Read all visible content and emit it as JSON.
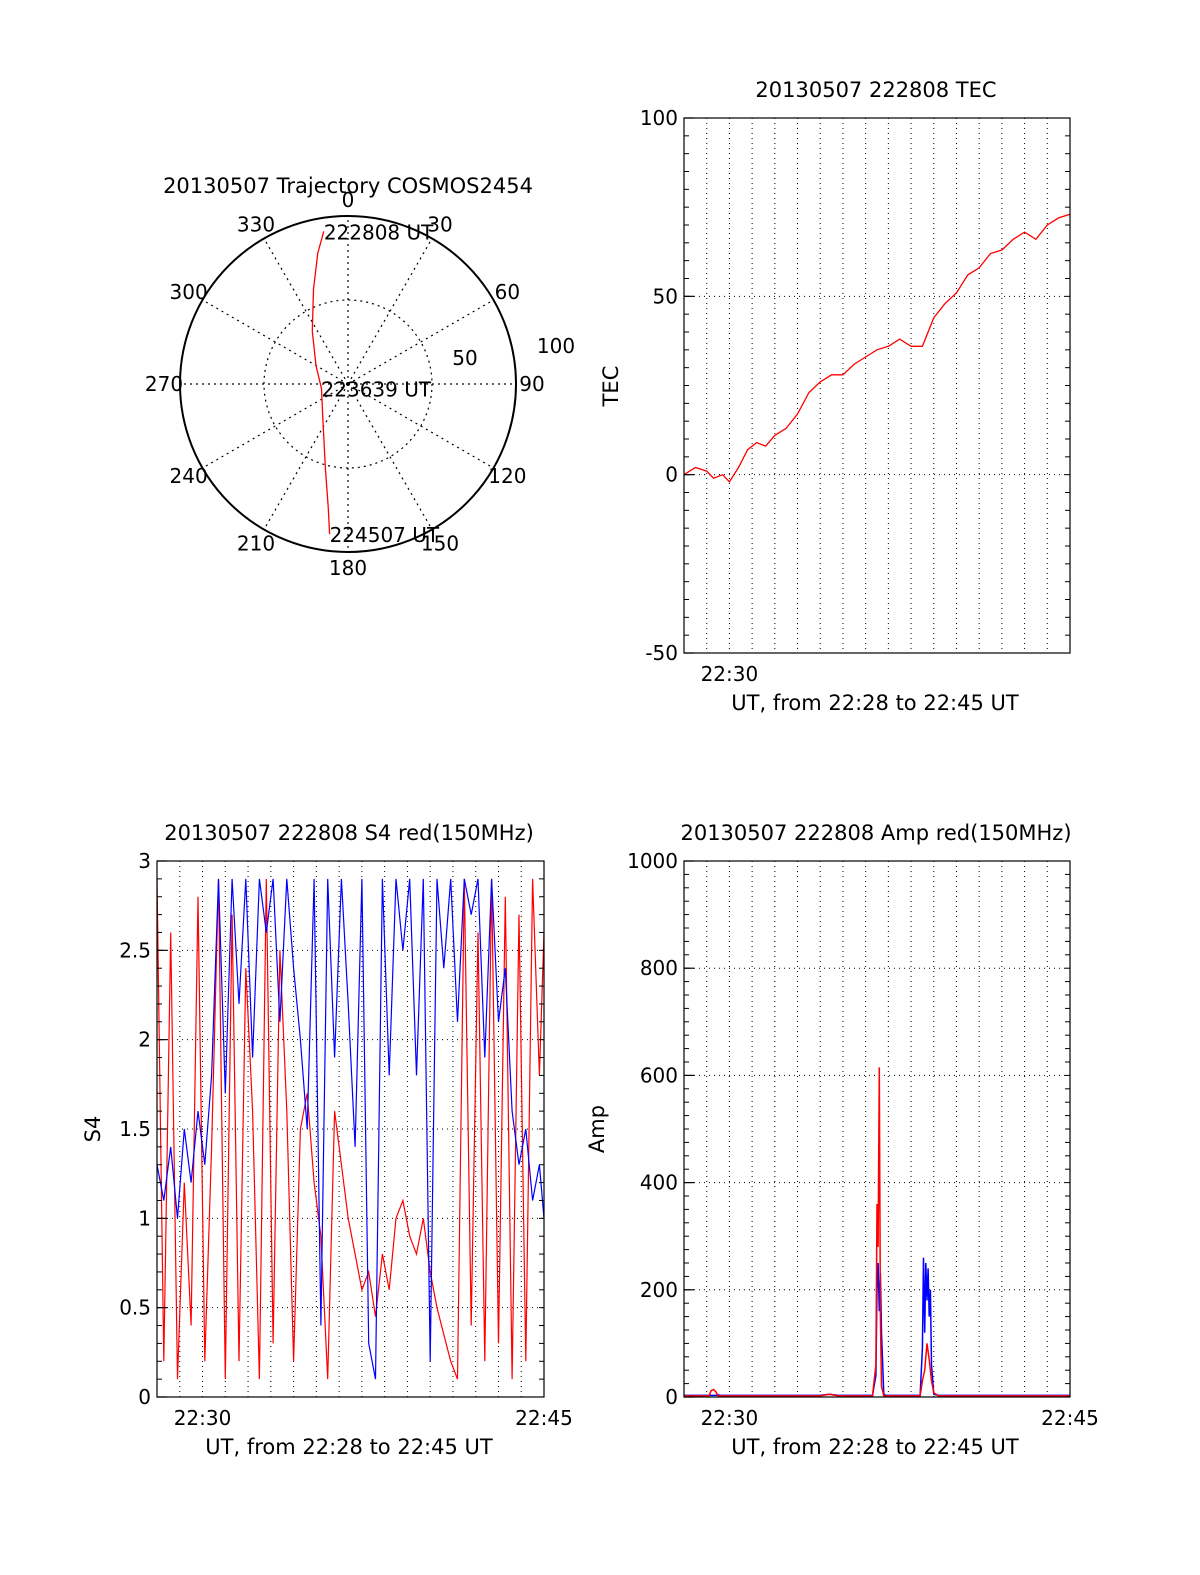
{
  "chart_data": [
    {
      "type": "polar",
      "title": "20130507 Trajectory COSMOS2454",
      "azimuth_ticks": [
        "0",
        "30",
        "60",
        "90",
        "120",
        "150",
        "180",
        "210",
        "240",
        "270",
        "300",
        "330"
      ],
      "radial_ticks": [
        "50",
        "100"
      ],
      "series": [
        {
          "color": "#ff0000",
          "points": [
            {
              "az": 351,
              "r": 92
            },
            {
              "az": 347,
              "r": 80
            },
            {
              "az": 340,
              "r": 60
            },
            {
              "az": 326,
              "r": 38
            },
            {
              "az": 300,
              "r": 22
            },
            {
              "az": 260,
              "r": 16
            },
            {
              "az": 215,
              "r": 26
            },
            {
              "az": 195,
              "r": 52
            },
            {
              "az": 189,
              "r": 75
            },
            {
              "az": 187,
              "r": 90
            }
          ]
        }
      ],
      "annotations": [
        {
          "text": "222808 UT",
          "az": 351,
          "r": 92
        },
        {
          "text": "223639 UT",
          "az": 260,
          "r": 16
        },
        {
          "text": "224507 UT",
          "az": 187,
          "r": 90
        }
      ]
    },
    {
      "type": "line",
      "title": "20130507 222808 TEC",
      "xlabel": "UT, from 22:28 to 22:45 UT",
      "ylabel": "TEC",
      "xlim": [
        0,
        17
      ],
      "ylim": [
        -50,
        100
      ],
      "yticks": [
        "-50",
        "0",
        "50",
        "100"
      ],
      "xticks": [
        {
          "x": 2,
          "label": "22:30"
        }
      ],
      "grid": true,
      "series": [
        {
          "color": "#ff0000",
          "x": [
            0,
            0.5,
            1,
            1.3,
            1.7,
            2,
            2.4,
            2.8,
            3.2,
            3.6,
            4,
            4.5,
            5,
            5.5,
            6,
            6.5,
            7,
            7.5,
            8,
            8.5,
            9,
            9.5,
            10,
            10.5,
            11,
            11.5,
            12,
            12.5,
            13,
            13.5,
            14,
            14.5,
            15,
            15.5,
            16,
            16.5,
            17
          ],
          "y": [
            0,
            2,
            1,
            -1,
            0,
            -2,
            2,
            7,
            9,
            8,
            11,
            13,
            17,
            23,
            26,
            28,
            28,
            31,
            33,
            35,
            36,
            38,
            36,
            36,
            44,
            48,
            51,
            56,
            58,
            62,
            63,
            66,
            68,
            66,
            70,
            72,
            73
          ]
        }
      ]
    },
    {
      "type": "line",
      "title": "20130507 222808 S4 red(150MHz)",
      "xlabel": "UT, from 22:28 to 22:45 UT",
      "ylabel": "S4",
      "xlim": [
        0,
        17
      ],
      "ylim": [
        0,
        3
      ],
      "yticks": [
        "0",
        "0.5",
        "1",
        "1.5",
        "2",
        "2.5",
        "3"
      ],
      "xticks": [
        {
          "x": 2,
          "label": "22:30"
        },
        {
          "x": 17,
          "label": "22:45"
        }
      ],
      "grid": true,
      "series": [
        {
          "color": "#ff0000",
          "x": [
            0,
            0.3,
            0.6,
            0.9,
            1.2,
            1.5,
            1.8,
            2.1,
            2.4,
            2.7,
            3,
            3.3,
            3.6,
            3.9,
            4.2,
            4.5,
            4.8,
            5.1,
            5.4,
            5.7,
            6,
            6.3,
            6.6,
            6.9,
            7.2,
            7.5,
            7.8,
            8.1,
            8.4,
            8.7,
            9,
            9.3,
            9.6,
            9.9,
            10.2,
            10.5,
            10.8,
            11.1,
            11.4,
            11.7,
            12,
            12.3,
            12.6,
            12.9,
            13.2,
            13.5,
            13.8,
            14.1,
            14.4,
            14.7,
            15,
            15.3,
            15.6,
            15.9,
            16.2,
            16.5,
            16.8,
            17
          ],
          "y": [
            2.9,
            0.2,
            2.6,
            0.1,
            1.2,
            0.4,
            2.8,
            0.2,
            1.4,
            2.9,
            0.1,
            2.7,
            0.2,
            2.4,
            1.6,
            0.1,
            2.9,
            0.3,
            2.5,
            1.6,
            0.2,
            1.5,
            1.7,
            1.2,
            0.9,
            0.1,
            1.6,
            1.3,
            1.0,
            0.8,
            0.6,
            0.7,
            0.45,
            0.8,
            0.6,
            1.0,
            1.1,
            0.9,
            0.8,
            1.0,
            0.7,
            0.5,
            0.35,
            0.2,
            0.1,
            2.9,
            0.4,
            2.6,
            0.2,
            2.9,
            0.3,
            2.8,
            0.1,
            2.7,
            0.2,
            2.9,
            1.8,
            2.6
          ]
        },
        {
          "color": "#0000ff",
          "x": [
            0,
            0.3,
            0.6,
            0.9,
            1.2,
            1.5,
            1.8,
            2.1,
            2.4,
            2.7,
            3,
            3.3,
            3.6,
            3.9,
            4.2,
            4.5,
            4.8,
            5.1,
            5.4,
            5.7,
            6,
            6.3,
            6.6,
            6.9,
            7.2,
            7.5,
            7.8,
            8.1,
            8.4,
            8.7,
            9,
            9.3,
            9.6,
            9.9,
            10.2,
            10.5,
            10.8,
            11.1,
            11.4,
            11.7,
            12,
            12.3,
            12.6,
            12.9,
            13.2,
            13.5,
            13.8,
            14.1,
            14.4,
            14.7,
            15,
            15.3,
            15.6,
            15.9,
            16.2,
            16.5,
            16.8,
            17
          ],
          "y": [
            1.3,
            1.1,
            1.4,
            1.0,
            1.5,
            1.2,
            1.6,
            1.3,
            1.8,
            2.9,
            1.7,
            2.9,
            2.2,
            2.9,
            1.9,
            2.9,
            2.6,
            2.9,
            2.1,
            2.9,
            2.4,
            2.0,
            1.5,
            2.9,
            0.4,
            2.9,
            1.9,
            2.9,
            2.2,
            1.4,
            2.9,
            0.3,
            0.1,
            2.9,
            1.8,
            2.9,
            2.5,
            2.9,
            1.8,
            2.9,
            0.2,
            2.9,
            2.4,
            2.9,
            2.1,
            2.9,
            2.7,
            2.9,
            1.9,
            2.9,
            2.1,
            2.4,
            1.6,
            1.3,
            1.5,
            1.1,
            1.3,
            1.0
          ]
        }
      ]
    },
    {
      "type": "line",
      "title": "20130507 222808 Amp red(150MHz)",
      "xlabel": "UT, from 22:28 to 22:45 UT",
      "ylabel": "Amp",
      "xlim": [
        0,
        17
      ],
      "ylim": [
        0,
        1000
      ],
      "yticks": [
        "0",
        "200",
        "400",
        "600",
        "800",
        "1000"
      ],
      "xticks": [
        {
          "x": 2,
          "label": "22:30"
        },
        {
          "x": 17,
          "label": "22:45"
        }
      ],
      "grid": true,
      "series": [
        {
          "color": "#0000ff",
          "x": [
            0,
            1.0,
            1.4,
            1.5,
            1.6,
            2.0,
            6.0,
            6.4,
            6.8,
            8.3,
            8.45,
            8.5,
            8.55,
            8.6,
            8.65,
            8.7,
            8.8,
            8.9,
            10.4,
            10.5,
            10.55,
            10.6,
            10.65,
            10.7,
            10.75,
            10.8,
            10.85,
            10.9,
            11.0,
            11.2,
            17
          ],
          "y": [
            3,
            3,
            3,
            4,
            3,
            3,
            3,
            5,
            3,
            3,
            40,
            200,
            250,
            160,
            230,
            120,
            5,
            3,
            3,
            90,
            260,
            120,
            250,
            180,
            240,
            150,
            200,
            60,
            5,
            3,
            3
          ]
        },
        {
          "color": "#ff0000",
          "x": [
            0,
            1.1,
            1.2,
            1.3,
            1.4,
            1.5,
            2.0,
            6.0,
            6.4,
            6.8,
            8.3,
            8.45,
            8.5,
            8.55,
            8.6,
            8.65,
            8.7,
            8.8,
            8.9,
            10.4,
            10.5,
            10.6,
            10.7,
            10.8,
            10.9,
            11.0,
            11.2,
            17
          ],
          "y": [
            2,
            2,
            12,
            14,
            10,
            2,
            2,
            2,
            5,
            2,
            2,
            60,
            360,
            280,
            615,
            150,
            20,
            2,
            2,
            2,
            30,
            50,
            100,
            70,
            30,
            8,
            2,
            2
          ]
        }
      ]
    }
  ]
}
